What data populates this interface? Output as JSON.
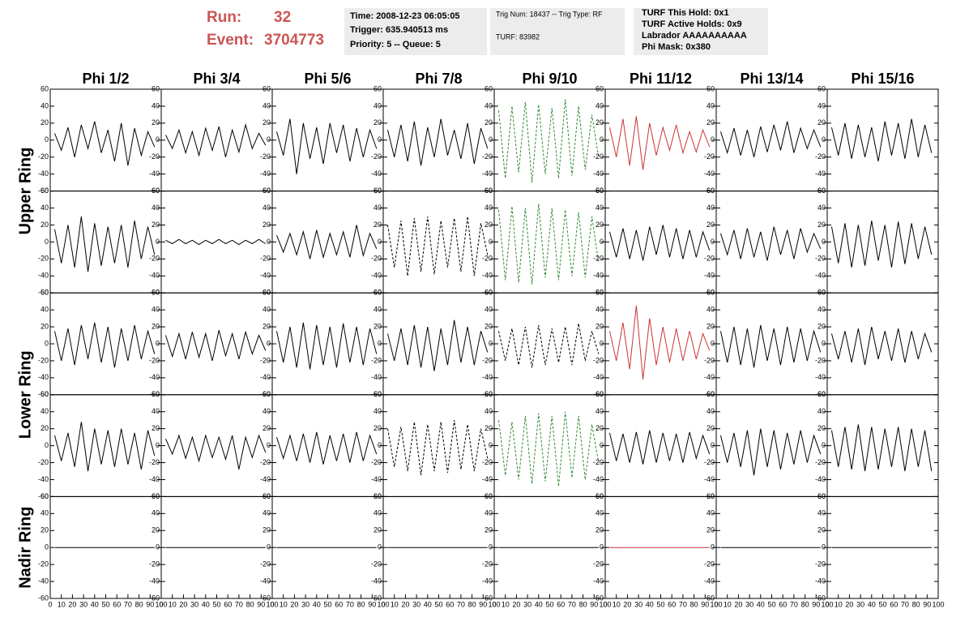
{
  "header": {
    "run_label": "Run:",
    "run": "32",
    "event_label": "Event:",
    "event": "3704773"
  },
  "info_boxes": [
    [
      "Time: 2008-12-23 06:05:05",
      "Trigger: 635.940513 ms",
      "Priority: 5 -- Queue: 5"
    ],
    [
      "Trig Num: 18437 -- Trig Type: RF",
      "TURF: 83982"
    ],
    [
      "TURF This Hold: 0x1",
      "TURF Active Holds: 0x9",
      "Labrador AAAAAAAAAA",
      "Phi Mask: 0x380"
    ]
  ],
  "chart_data": {
    "type": "line",
    "columns": [
      "Phi 1/2",
      "Phi 3/4",
      "Phi 5/6",
      "Phi 7/8",
      "Phi 9/10",
      "Phi 11/12",
      "Phi 13/14",
      "Phi 15/16"
    ],
    "row_labels": [
      "Upper Ring",
      "Lower Ring",
      "Nadir Ring"
    ],
    "xlim": [
      0,
      100
    ],
    "ylim": [
      -60,
      60
    ],
    "xticks": [
      0,
      10,
      20,
      30,
      40,
      50,
      60,
      70,
      80,
      90,
      100
    ],
    "yticks": [
      -60,
      -40,
      -20,
      0,
      20,
      40,
      60
    ],
    "x": [
      4,
      10,
      16,
      22,
      28,
      34,
      40,
      46,
      52,
      58,
      64,
      70,
      76,
      82,
      88,
      94
    ],
    "panels": [
      [
        {
          "color": "#000000",
          "style": "solid",
          "values": [
            8,
            -12,
            15,
            -20,
            18,
            -10,
            22,
            -15,
            12,
            -25,
            20,
            -30,
            14,
            -18,
            10,
            -8
          ]
        },
        {
          "color": "#000000",
          "style": "solid",
          "values": [
            6,
            -10,
            12,
            -15,
            10,
            -18,
            14,
            -12,
            16,
            -20,
            12,
            -14,
            18,
            -10,
            8,
            -6
          ]
        },
        {
          "color": "#000000",
          "style": "solid",
          "values": [
            10,
            -18,
            25,
            -40,
            20,
            -22,
            15,
            -28,
            20,
            -15,
            18,
            -25,
            14,
            -20,
            12,
            -10
          ]
        },
        {
          "color": "#000000",
          "style": "solid",
          "values": [
            12,
            -20,
            18,
            -25,
            22,
            -30,
            15,
            -20,
            25,
            -18,
            12,
            -22,
            20,
            -28,
            14,
            -10
          ]
        },
        {
          "color": "#2e8b2e",
          "style": "dashed",
          "values": [
            35,
            -45,
            40,
            -38,
            45,
            -50,
            42,
            -40,
            38,
            -45,
            48,
            -42,
            40,
            -35,
            30,
            -20
          ]
        },
        {
          "color": "#cc3333",
          "style": "solid",
          "values": [
            15,
            -20,
            25,
            -30,
            28,
            -35,
            20,
            -18,
            15,
            -12,
            18,
            -15,
            10,
            -14,
            12,
            -8
          ]
        },
        {
          "color": "#000000",
          "style": "solid",
          "values": [
            10,
            -15,
            14,
            -18,
            12,
            -20,
            16,
            -14,
            18,
            -12,
            22,
            -15,
            14,
            -10,
            12,
            -8
          ]
        },
        {
          "color": "#000000",
          "style": "solid",
          "values": [
            15,
            -18,
            20,
            -22,
            18,
            -20,
            15,
            -25,
            22,
            -18,
            20,
            -22,
            25,
            -20,
            18,
            -15
          ]
        }
      ],
      [
        {
          "color": "#000000",
          "style": "solid",
          "values": [
            15,
            -25,
            20,
            -30,
            30,
            -35,
            22,
            -28,
            18,
            -25,
            20,
            -30,
            25,
            -20,
            18,
            -15
          ]
        },
        {
          "color": "#000000",
          "style": "solid",
          "values": [
            2,
            -2,
            3,
            -2,
            2,
            -3,
            2,
            -2,
            3,
            -2,
            2,
            -3,
            2,
            -2,
            3,
            -2
          ]
        },
        {
          "color": "#000000",
          "style": "solid",
          "values": [
            8,
            -12,
            10,
            -15,
            12,
            -20,
            14,
            -18,
            10,
            -15,
            12,
            -18,
            20,
            -16,
            10,
            -8
          ]
        },
        {
          "color": "#000000",
          "style": "dashed",
          "values": [
            20,
            -30,
            25,
            -40,
            28,
            -35,
            30,
            -38,
            25,
            -30,
            28,
            -35,
            30,
            -40,
            22,
            -15
          ]
        },
        {
          "color": "#2e8b2e",
          "style": "dashed",
          "values": [
            38,
            -45,
            42,
            -48,
            40,
            -50,
            45,
            -42,
            40,
            -45,
            38,
            -40,
            35,
            -42,
            30,
            -25
          ]
        },
        {
          "color": "#000000",
          "style": "solid",
          "values": [
            12,
            -18,
            16,
            -20,
            14,
            -22,
            18,
            -15,
            20,
            -18,
            16,
            -20,
            14,
            -18,
            12,
            -10
          ]
        },
        {
          "color": "#000000",
          "style": "solid",
          "values": [
            10,
            -15,
            14,
            -20,
            16,
            -18,
            12,
            -22,
            18,
            -15,
            14,
            -20,
            16,
            -12,
            10,
            -8
          ]
        },
        {
          "color": "#000000",
          "style": "solid",
          "values": [
            18,
            -25,
            22,
            -30,
            20,
            -28,
            25,
            -22,
            20,
            -30,
            24,
            -26,
            22,
            -20,
            18,
            -15
          ]
        }
      ],
      [
        {
          "color": "#000000",
          "style": "solid",
          "values": [
            15,
            -20,
            18,
            -25,
            22,
            -18,
            25,
            -22,
            20,
            -28,
            18,
            -20,
            22,
            -18,
            15,
            -12
          ]
        },
        {
          "color": "#000000",
          "style": "solid",
          "values": [
            10,
            -15,
            12,
            -18,
            14,
            -16,
            12,
            -20,
            16,
            -14,
            12,
            -18,
            14,
            -12,
            10,
            -8
          ]
        },
        {
          "color": "#000000",
          "style": "solid",
          "values": [
            15,
            -22,
            20,
            -28,
            25,
            -30,
            22,
            -25,
            20,
            -28,
            24,
            -22,
            20,
            -25,
            18,
            -12
          ]
        },
        {
          "color": "#000000",
          "style": "solid",
          "values": [
            12,
            -20,
            18,
            -25,
            22,
            -28,
            20,
            -32,
            18,
            -25,
            28,
            -22,
            20,
            -25,
            15,
            -10
          ]
        },
        {
          "color": "#000000",
          "style": "dashed",
          "values": [
            15,
            -20,
            18,
            -25,
            20,
            -28,
            22,
            -25,
            18,
            -22,
            20,
            -25,
            24,
            -20,
            15,
            -12
          ]
        },
        {
          "color": "#cc3333",
          "style": "solid",
          "values": [
            15,
            -20,
            25,
            -30,
            45,
            -42,
            30,
            -25,
            20,
            -22,
            18,
            -20,
            15,
            -18,
            12,
            -8
          ]
        },
        {
          "color": "#000000",
          "style": "solid",
          "values": [
            15,
            -22,
            20,
            -25,
            18,
            -28,
            22,
            -20,
            18,
            -25,
            20,
            -22,
            18,
            -20,
            15,
            -10
          ]
        },
        {
          "color": "#000000",
          "style": "solid",
          "values": [
            12,
            -18,
            15,
            -22,
            18,
            -25,
            20,
            -18,
            15,
            -20,
            18,
            -22,
            15,
            -18,
            12,
            -10
          ]
        }
      ],
      [
        {
          "color": "#000000",
          "style": "solid",
          "values": [
            12,
            -18,
            15,
            -25,
            28,
            -30,
            20,
            -22,
            18,
            -25,
            20,
            -22,
            15,
            -28,
            18,
            -12
          ]
        },
        {
          "color": "#000000",
          "style": "solid",
          "values": [
            8,
            -10,
            12,
            -15,
            10,
            -18,
            12,
            -14,
            10,
            -16,
            12,
            -28,
            10,
            -14,
            12,
            -8
          ]
        },
        {
          "color": "#000000",
          "style": "solid",
          "values": [
            10,
            -15,
            12,
            -18,
            14,
            -20,
            16,
            -22,
            12,
            -18,
            14,
            -20,
            16,
            -18,
            12,
            -10
          ]
        },
        {
          "color": "#000000",
          "style": "dashed",
          "values": [
            20,
            -25,
            22,
            -30,
            28,
            -35,
            25,
            -30,
            28,
            -32,
            30,
            -28,
            25,
            -30,
            20,
            -15
          ]
        },
        {
          "color": "#2e8b2e",
          "style": "dashed",
          "values": [
            30,
            -35,
            28,
            -40,
            35,
            -45,
            38,
            -42,
            35,
            -48,
            40,
            -38,
            35,
            -40,
            25,
            -20
          ]
        },
        {
          "color": "#000000",
          "style": "solid",
          "values": [
            15,
            -18,
            14,
            -20,
            16,
            -22,
            18,
            -20,
            15,
            -18,
            14,
            -20,
            16,
            -15,
            12,
            -10
          ]
        },
        {
          "color": "#000000",
          "style": "solid",
          "values": [
            12,
            -20,
            15,
            -25,
            18,
            -35,
            20,
            -25,
            18,
            -28,
            15,
            -22,
            18,
            -20,
            12,
            -10
          ]
        },
        {
          "color": "#000000",
          "style": "solid",
          "values": [
            18,
            -25,
            22,
            -28,
            25,
            -30,
            22,
            -28,
            20,
            -25,
            22,
            -30,
            20,
            -25,
            18,
            -30
          ]
        }
      ],
      [
        {
          "color": "#000000",
          "style": "solid",
          "values": [
            0,
            0,
            0,
            0,
            0,
            0,
            0,
            0,
            0,
            0,
            0,
            0,
            0,
            0,
            0,
            0
          ]
        },
        {
          "color": "#000000",
          "style": "solid",
          "values": [
            0,
            0,
            0,
            0,
            0,
            0,
            0,
            0,
            0,
            0,
            0,
            0,
            0,
            0,
            0,
            0
          ]
        },
        {
          "color": "#000000",
          "style": "solid",
          "values": [
            0,
            0,
            0,
            0,
            0,
            0,
            0,
            0,
            0,
            0,
            0,
            0,
            0,
            0,
            0,
            0
          ]
        },
        {
          "color": "#000000",
          "style": "solid",
          "values": [
            0,
            0,
            0,
            0,
            0,
            0,
            0,
            0,
            0,
            0,
            0,
            0,
            0,
            0,
            0,
            0
          ]
        },
        {
          "color": "#000000",
          "style": "solid",
          "values": [
            0,
            0,
            0,
            0,
            0,
            0,
            0,
            0,
            0,
            0,
            0,
            0,
            0,
            0,
            0,
            0
          ]
        },
        {
          "color": "#cc3333",
          "style": "solid",
          "values": [
            0,
            0,
            0,
            0,
            0,
            0,
            0,
            0,
            0,
            0,
            0,
            0,
            0,
            0,
            0,
            0
          ]
        },
        {
          "color": "#000000",
          "style": "solid",
          "values": [
            0,
            0,
            0,
            0,
            0,
            0,
            0,
            0,
            0,
            0,
            0,
            0,
            0,
            0,
            0,
            0
          ]
        },
        {
          "color": "#000000",
          "style": "solid",
          "values": [
            0,
            0,
            0,
            0,
            0,
            0,
            0,
            0,
            0,
            0,
            0,
            0,
            0,
            0,
            0,
            0
          ]
        }
      ]
    ]
  }
}
